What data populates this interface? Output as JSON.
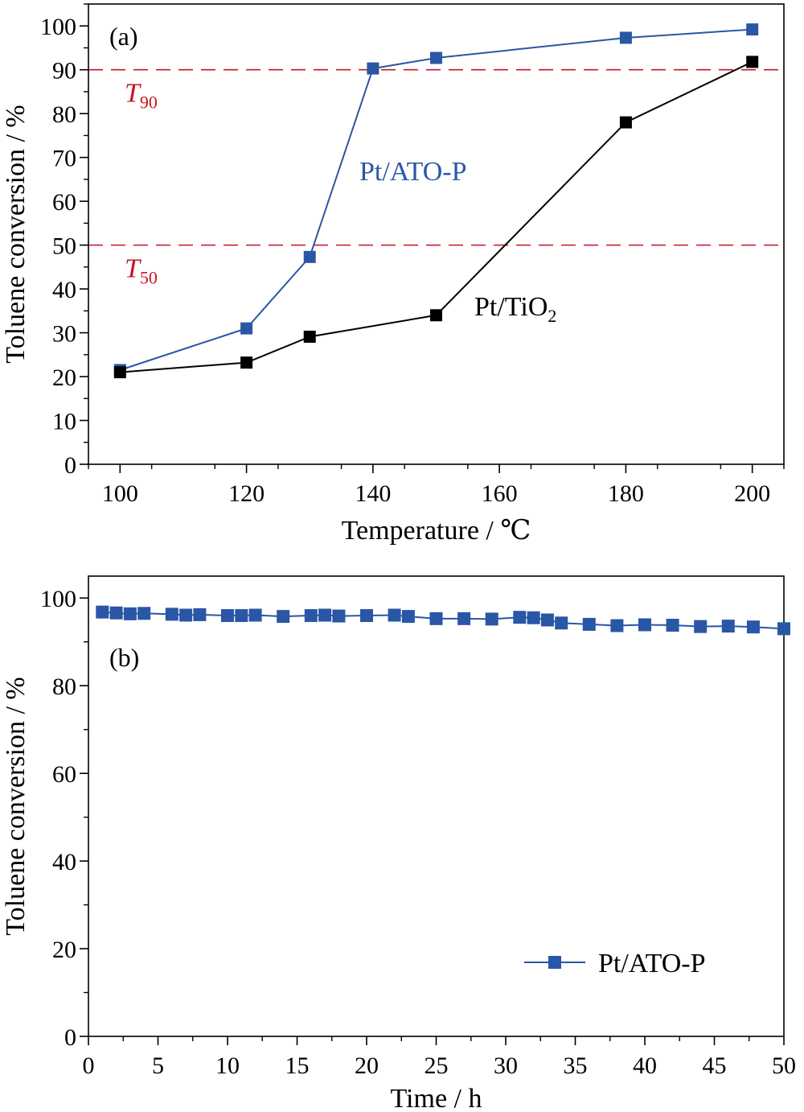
{
  "chart_data": [
    {
      "panel_label": "(a)",
      "type": "line",
      "xlabel": "Temperature / ℃",
      "ylabel": "Toluene conversion / %",
      "xlim": [
        95,
        205
      ],
      "ylim": [
        0,
        105
      ],
      "xticks": [
        100,
        120,
        140,
        160,
        180,
        200
      ],
      "yticks": [
        0,
        10,
        20,
        30,
        40,
        50,
        60,
        70,
        80,
        90,
        100
      ],
      "grid": false,
      "reference_lines": [
        {
          "y": 90,
          "label_main": "T",
          "label_sub": "90",
          "color": "#c8141e"
        },
        {
          "y": 50,
          "label_main": "T",
          "label_sub": "50",
          "color": "#c8141e"
        }
      ],
      "series": [
        {
          "name": "Pt/ATO-P",
          "label_main": "Pt/ATO-P",
          "label_sub": "",
          "color": "#2a56a6",
          "x": [
            100,
            120,
            130,
            140,
            150,
            180,
            200
          ],
          "y": [
            21.5,
            31,
            47.3,
            90.3,
            92.7,
            97.3,
            99.2
          ]
        },
        {
          "name": "Pt/TiO2",
          "label_main": "Pt/TiO",
          "label_sub": "2",
          "color": "#000000",
          "x": [
            100,
            120,
            130,
            150,
            180,
            200
          ],
          "y": [
            21,
            23.2,
            29.1,
            34,
            78,
            91.8
          ]
        }
      ]
    },
    {
      "panel_label": "(b)",
      "type": "line",
      "xlabel": "Time / h",
      "ylabel": "Toluene conversion / %",
      "xlim": [
        0,
        50
      ],
      "ylim": [
        0,
        105
      ],
      "xticks": [
        0,
        5,
        10,
        15,
        20,
        25,
        30,
        35,
        40,
        45,
        50
      ],
      "yticks": [
        0,
        20,
        40,
        60,
        80,
        100
      ],
      "grid": false,
      "legend": "bottom-right",
      "series": [
        {
          "name": "Pt/ATO-P",
          "color": "#2a56a6",
          "x": [
            1,
            2,
            3,
            4,
            6,
            7,
            8,
            10,
            11,
            12,
            14,
            16,
            17,
            18,
            20,
            22,
            23,
            25,
            27,
            29,
            31,
            32,
            33,
            34,
            36,
            38,
            40,
            42,
            44,
            46,
            47.8,
            50
          ],
          "y": [
            96.8,
            96.6,
            96.4,
            96.5,
            96.3,
            96.1,
            96.2,
            96.0,
            96.0,
            96.1,
            95.8,
            96.0,
            96.1,
            95.9,
            96.0,
            96.1,
            95.8,
            95.3,
            95.3,
            95.2,
            95.6,
            95.5,
            95.0,
            94.3,
            94.0,
            93.7,
            93.9,
            93.8,
            93.5,
            93.6,
            93.4,
            93.0
          ]
        }
      ]
    }
  ]
}
